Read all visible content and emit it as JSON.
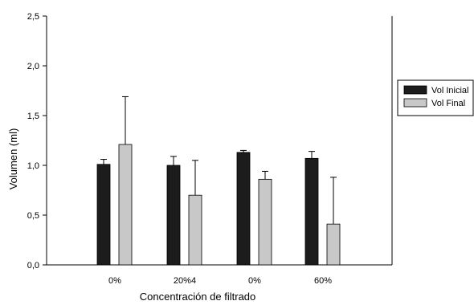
{
  "chart_data": {
    "type": "bar",
    "title": "",
    "xlabel": "Concentración de filtrado",
    "ylabel": "Volumen (ml)",
    "ylim": [
      0,
      2.5
    ],
    "yticks": [
      "0,0",
      "0,5",
      "1,0",
      "1,5",
      "2,0",
      "2,5"
    ],
    "categories": [
      "0%",
      "20%4",
      "0%",
      "60%"
    ],
    "series": [
      {
        "name": "Vol Inicial",
        "color": "#1c1c1c",
        "values": [
          1.01,
          1.0,
          1.13,
          1.07
        ],
        "errors": [
          0.05,
          0.09,
          0.02,
          0.07
        ]
      },
      {
        "name": "Vol Final",
        "color": "#c8c8c8",
        "values": [
          1.21,
          0.7,
          0.86,
          0.41
        ],
        "errors": [
          0.48,
          0.35,
          0.08,
          0.47
        ]
      }
    ],
    "legend_position": "right",
    "grid": false
  }
}
